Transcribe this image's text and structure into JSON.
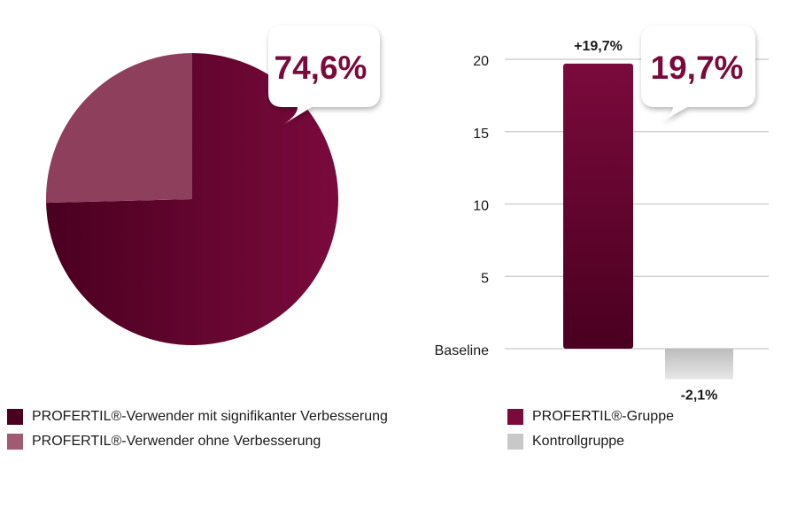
{
  "colors": {
    "burgundy": "#7a0a3c",
    "burgundy_dark": "#4a0020",
    "burgundy_light": "#8e3f5c",
    "burgundy_legend": "#a05a72",
    "grey": "#c8c8c8",
    "grid": "#c8c8c8",
    "text": "#1a1a1a",
    "callout_text": "#7a0a3c"
  },
  "chart_data": [
    {
      "type": "pie",
      "slices": [
        {
          "label": "PROFERTIL®-Verwender mit signifikanter Verbesserung",
          "value": 74.6
        },
        {
          "label": "PROFERTIL®-Verwender ohne Verbesserung",
          "value": 25.4
        }
      ],
      "callout": "74,6%",
      "legend": [
        {
          "label": "PROFERTIL®-Verwender mit signifikanter Verbesserung",
          "color_key": "burgundy_dark"
        },
        {
          "label": "PROFERTIL®-Verwender ohne Verbesserung",
          "color_key": "burgundy_legend"
        }
      ],
      "legend_position": "bottom"
    },
    {
      "type": "bar",
      "categories": [
        "PROFERTIL®-Gruppe",
        "Kontrollgruppe"
      ],
      "values": [
        19.7,
        -2.1
      ],
      "data_labels": [
        "+19,7%",
        "-2,1%"
      ],
      "y_ticks": [
        {
          "value": 0,
          "label": "Baseline"
        },
        {
          "value": 5,
          "label": "5"
        },
        {
          "value": 10,
          "label": "10"
        },
        {
          "value": 15,
          "label": "15"
        },
        {
          "value": 20,
          "label": "20"
        }
      ],
      "ylim": [
        -2.1,
        20
      ],
      "grid": true,
      "callout": "19,7%",
      "legend": [
        {
          "label": "PROFERTIL®-Gruppe",
          "color_key": "burgundy"
        },
        {
          "label": "Kontrollgruppe",
          "color_key": "grey"
        }
      ],
      "legend_position": "bottom"
    }
  ]
}
